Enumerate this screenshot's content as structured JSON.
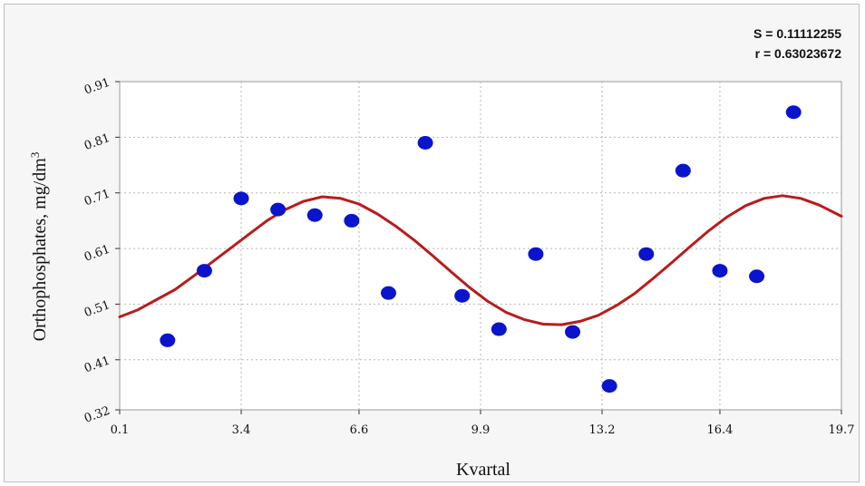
{
  "chart_data": {
    "type": "scatter",
    "title": "",
    "xlabel": "Kvartal",
    "ylabel_main": "Orthophosphates, mg/dm",
    "ylabel_sup": "3",
    "xlim": [
      0.1,
      19.7
    ],
    "ylim": [
      0.32,
      0.91
    ],
    "x_ticks": [
      0.1,
      3.4,
      6.6,
      9.9,
      13.2,
      16.4,
      19.7
    ],
    "x_tick_labels": [
      "0.1",
      "3.4",
      "6.6",
      "9.9",
      "13.2",
      "16.4",
      "19.7"
    ],
    "y_ticks": [
      0.32,
      0.41,
      0.51,
      0.61,
      0.71,
      0.81,
      0.91
    ],
    "y_tick_labels": [
      "0.32",
      "0.41",
      "0.51",
      "0.61",
      "0.71",
      "0.81",
      "0.91"
    ],
    "grid": true,
    "stats": {
      "s_label": "S = 0.11112255",
      "r_label": "r = 0.63023672"
    },
    "series": [
      {
        "kind": "points",
        "color": "#0a14cc",
        "points": [
          {
            "x": 1.4,
            "y": 0.445
          },
          {
            "x": 2.4,
            "y": 0.57
          },
          {
            "x": 3.4,
            "y": 0.7
          },
          {
            "x": 4.4,
            "y": 0.68
          },
          {
            "x": 5.4,
            "y": 0.67
          },
          {
            "x": 6.4,
            "y": 0.66
          },
          {
            "x": 7.4,
            "y": 0.53
          },
          {
            "x": 8.4,
            "y": 0.8
          },
          {
            "x": 9.4,
            "y": 0.525
          },
          {
            "x": 10.4,
            "y": 0.465
          },
          {
            "x": 11.4,
            "y": 0.6
          },
          {
            "x": 12.4,
            "y": 0.46
          },
          {
            "x": 13.4,
            "y": 0.363
          },
          {
            "x": 14.4,
            "y": 0.6
          },
          {
            "x": 15.4,
            "y": 0.75
          },
          {
            "x": 16.4,
            "y": 0.57
          },
          {
            "x": 17.4,
            "y": 0.56
          },
          {
            "x": 18.4,
            "y": 0.855
          }
        ]
      },
      {
        "kind": "fitted-curve",
        "color": "#b81c1c",
        "points": [
          {
            "x": 0.1,
            "y": 0.487
          },
          {
            "x": 0.6,
            "y": 0.5
          },
          {
            "x": 1.1,
            "y": 0.518
          },
          {
            "x": 1.6,
            "y": 0.536
          },
          {
            "x": 2.1,
            "y": 0.56
          },
          {
            "x": 2.6,
            "y": 0.585
          },
          {
            "x": 3.1,
            "y": 0.61
          },
          {
            "x": 3.6,
            "y": 0.635
          },
          {
            "x": 4.1,
            "y": 0.66
          },
          {
            "x": 4.6,
            "y": 0.68
          },
          {
            "x": 5.1,
            "y": 0.695
          },
          {
            "x": 5.6,
            "y": 0.703
          },
          {
            "x": 6.1,
            "y": 0.7
          },
          {
            "x": 6.6,
            "y": 0.69
          },
          {
            "x": 7.1,
            "y": 0.672
          },
          {
            "x": 7.6,
            "y": 0.65
          },
          {
            "x": 8.1,
            "y": 0.625
          },
          {
            "x": 8.6,
            "y": 0.597
          },
          {
            "x": 9.1,
            "y": 0.568
          },
          {
            "x": 9.6,
            "y": 0.54
          },
          {
            "x": 10.1,
            "y": 0.515
          },
          {
            "x": 10.6,
            "y": 0.495
          },
          {
            "x": 11.1,
            "y": 0.482
          },
          {
            "x": 11.6,
            "y": 0.474
          },
          {
            "x": 12.1,
            "y": 0.473
          },
          {
            "x": 12.6,
            "y": 0.479
          },
          {
            "x": 13.1,
            "y": 0.49
          },
          {
            "x": 13.6,
            "y": 0.508
          },
          {
            "x": 14.1,
            "y": 0.53
          },
          {
            "x": 14.6,
            "y": 0.557
          },
          {
            "x": 15.1,
            "y": 0.585
          },
          {
            "x": 15.6,
            "y": 0.614
          },
          {
            "x": 16.1,
            "y": 0.642
          },
          {
            "x": 16.6,
            "y": 0.667
          },
          {
            "x": 17.1,
            "y": 0.687
          },
          {
            "x": 17.6,
            "y": 0.7
          },
          {
            "x": 18.1,
            "y": 0.705
          },
          {
            "x": 18.6,
            "y": 0.7
          },
          {
            "x": 19.1,
            "y": 0.688
          },
          {
            "x": 19.7,
            "y": 0.668
          }
        ]
      }
    ]
  }
}
